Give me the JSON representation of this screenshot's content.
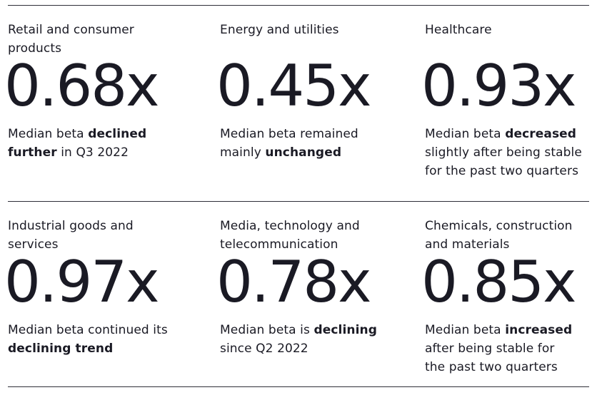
{
  "page": {
    "background": "#ffffff",
    "text_color": "#1a1a24",
    "rule_color": "#2e2e38"
  },
  "sectors": [
    {
      "name": "Retail and consumer\nproducts",
      "beta": "0.68x",
      "desc_pre": "Median beta ",
      "desc_bold": "declined\nfurther",
      "desc_post": " in Q3 2022"
    },
    {
      "name": "Energy and utilities",
      "beta": "0.45x",
      "desc_pre": "Median beta remained\nmainly ",
      "desc_bold": "unchanged",
      "desc_post": ""
    },
    {
      "name": "Healthcare",
      "beta": "0.93x",
      "desc_pre": "Median beta ",
      "desc_bold": "decreased",
      "desc_post": "\nslightly after being stable\nfor the past two quarters"
    },
    {
      "name": "Industrial goods and\nservices",
      "beta": "0.97x",
      "desc_pre": "Median beta continued its\n",
      "desc_bold": "declining trend",
      "desc_post": ""
    },
    {
      "name": "Media, technology and\ntelecommunication",
      "beta": "0.78x",
      "desc_pre": "Median beta is ",
      "desc_bold": "declining",
      "desc_post": "\nsince Q2 2022"
    },
    {
      "name": "Chemicals, construction\nand materials",
      "beta": "0.85x",
      "desc_pre": "Median beta ",
      "desc_bold": "increased",
      "desc_post": "\nafter being stable for\nthe past two quarters"
    }
  ]
}
